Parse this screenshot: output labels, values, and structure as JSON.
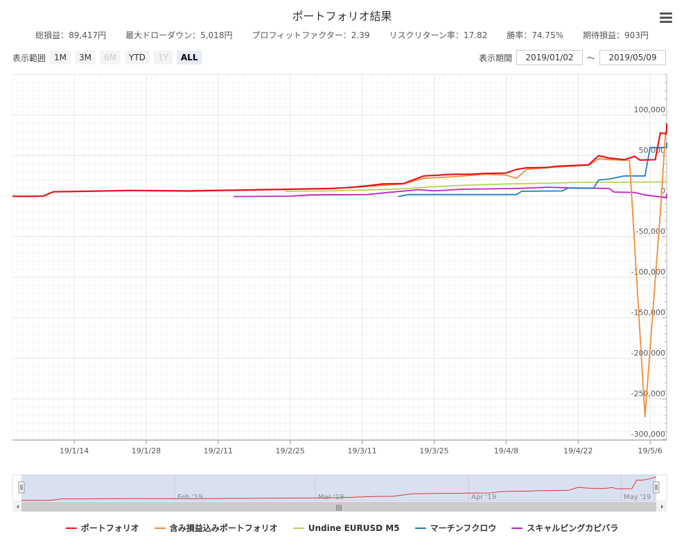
{
  "title": "ポートフォリオ結果",
  "stats": [
    "総損益：89,417円",
    "最大ドローダウン：5,018円",
    "プロフィットファクター：2.39",
    "リスクリターン率：17.82",
    "勝率：74.75%",
    "期待損益：903円"
  ],
  "range_selector": {
    "label": "表示範囲",
    "buttons": [
      {
        "label": "1M",
        "state": "normal"
      },
      {
        "label": "3M",
        "state": "normal"
      },
      {
        "label": "6M",
        "state": "disabled"
      },
      {
        "label": "YTD",
        "state": "normal"
      },
      {
        "label": "1Y",
        "state": "disabled"
      },
      {
        "label": "ALL",
        "state": "selected"
      }
    ]
  },
  "period": {
    "label": "表示期間",
    "from": "2019/01/02",
    "sep": "～",
    "to": "2019/05/09"
  },
  "navigator_labels": [
    "Feb '19",
    "Mar '19",
    "Apr '19",
    "May '19"
  ],
  "navigator_scroll_glyph": "|||",
  "chart_data": {
    "type": "line",
    "title": "ポートフォリオ結果",
    "xlabel": "",
    "ylabel": "",
    "x_ticks": [
      "19/1/14",
      "19/1/28",
      "19/2/11",
      "19/2/25",
      "19/3/11",
      "19/3/25",
      "19/4/8",
      "19/4/22",
      "19/5/6"
    ],
    "y_ticks": [
      "100,000",
      "50,000",
      "0",
      "-50,000",
      "-100,000",
      "-150,000",
      "-200,000",
      "-250,000",
      "-300,000"
    ],
    "xlim": [
      "2019/01/02",
      "2019/05/09"
    ],
    "ylim": [
      -300000,
      150000
    ],
    "grid": true,
    "legend_position": "bottom",
    "series": [
      {
        "name": "ポートフォリオ",
        "color": "#e8141e",
        "points": [
          [
            "2019/01/02",
            -200
          ],
          [
            "2019/01/06",
            -200
          ],
          [
            "2019/01/08",
            200
          ],
          [
            "2019/01/10",
            5500
          ],
          [
            "2019/01/16",
            6000
          ],
          [
            "2019/01/25",
            7000
          ],
          [
            "2019/02/05",
            6500
          ],
          [
            "2019/02/18",
            7800
          ],
          [
            "2019/02/24",
            8500
          ],
          [
            "2019/03/05",
            9500
          ],
          [
            "2019/03/08",
            10500
          ],
          [
            "2019/03/11",
            12000
          ],
          [
            "2019/03/15",
            15000
          ],
          [
            "2019/03/19",
            15500
          ],
          [
            "2019/03/23",
            25000
          ],
          [
            "2019/03/29",
            27000
          ],
          [
            "2019/04/01",
            27000
          ],
          [
            "2019/04/04",
            28000
          ],
          [
            "2019/04/08",
            28500
          ],
          [
            "2019/04/10",
            33000
          ],
          [
            "2019/04/12",
            35000
          ],
          [
            "2019/04/16",
            35500
          ],
          [
            "2019/04/18",
            37000
          ],
          [
            "2019/04/22",
            38000
          ],
          [
            "2019/04/24",
            38500
          ],
          [
            "2019/04/26",
            50000
          ],
          [
            "2019/04/28",
            47000
          ],
          [
            "2019/05/01",
            45000
          ],
          [
            "2019/05/03",
            49000
          ],
          [
            "2019/05/04",
            44500
          ],
          [
            "2019/05/07",
            45000
          ],
          [
            "2019/05/08",
            78000
          ],
          [
            "2019/05/09",
            77000
          ],
          [
            "2019/05/10",
            80000
          ],
          [
            "2019/05/12",
            89400
          ]
        ]
      },
      {
        "name": "含み損益込みポートフォリオ",
        "color": "#f28c35",
        "points": [
          [
            "2019/01/02",
            -200
          ],
          [
            "2019/01/06",
            -200
          ],
          [
            "2019/01/08",
            200
          ],
          [
            "2019/01/10",
            5500
          ],
          [
            "2019/01/16",
            6000
          ],
          [
            "2019/01/25",
            7000
          ],
          [
            "2019/02/05",
            6000
          ],
          [
            "2019/02/18",
            7500
          ],
          [
            "2019/02/24",
            8200
          ],
          [
            "2019/03/05",
            9200
          ],
          [
            "2019/03/11",
            11500
          ],
          [
            "2019/03/19",
            15000
          ],
          [
            "2019/03/23",
            22000
          ],
          [
            "2019/03/29",
            24000
          ],
          [
            "2019/04/04",
            27000
          ],
          [
            "2019/04/08",
            26000
          ],
          [
            "2019/04/10",
            22000
          ],
          [
            "2019/04/12",
            33000
          ],
          [
            "2019/04/18",
            36000
          ],
          [
            "2019/04/22",
            37500
          ],
          [
            "2019/04/24",
            38000
          ],
          [
            "2019/04/26",
            46000
          ],
          [
            "2019/04/28",
            45000
          ],
          [
            "2019/05/02",
            44000
          ],
          [
            "2019/05/05",
            -272000
          ],
          [
            "2019/05/08",
            -20000
          ],
          [
            "2019/05/09",
            78000
          ],
          [
            "2019/05/10",
            75000
          ],
          [
            "2019/05/12",
            87000
          ]
        ]
      },
      {
        "name": "Undine EURUSD M5",
        "color": "#b5d353",
        "points": [
          [
            "2019/02/24",
            6000
          ],
          [
            "2019/03/05",
            6500
          ],
          [
            "2019/03/19",
            9000
          ],
          [
            "2019/03/23",
            11000
          ],
          [
            "2019/03/29",
            13000
          ],
          [
            "2019/04/08",
            15000
          ],
          [
            "2019/04/16",
            16000
          ],
          [
            "2019/04/22",
            17000
          ],
          [
            "2019/05/12",
            17500
          ]
        ]
      },
      {
        "name": "マーチンフクロウ",
        "color": "#1f7dc6",
        "points": [
          [
            "2019/03/18",
            -500
          ],
          [
            "2019/03/20",
            2000
          ],
          [
            "2019/03/30",
            2000
          ],
          [
            "2019/04/10",
            2000
          ],
          [
            "2019/04/11",
            6000
          ],
          [
            "2019/04/19",
            6500
          ],
          [
            "2019/04/20",
            10000
          ],
          [
            "2019/04/25",
            10000
          ],
          [
            "2019/04/26",
            20000
          ],
          [
            "2019/04/28",
            21000
          ],
          [
            "2019/05/01",
            25000
          ],
          [
            "2019/05/05",
            25000
          ],
          [
            "2019/05/06",
            60000
          ],
          [
            "2019/05/10",
            60000
          ],
          [
            "2019/05/12",
            66000
          ]
        ]
      },
      {
        "name": "スキャルピングカピバラ",
        "color": "#c222c2",
        "points": [
          [
            "2019/02/14",
            -500
          ],
          [
            "2019/02/25",
            0
          ],
          [
            "2019/03/01",
            1500
          ],
          [
            "2019/03/12",
            2000
          ],
          [
            "2019/03/16",
            4500
          ],
          [
            "2019/03/22",
            8000
          ],
          [
            "2019/03/25",
            6500
          ],
          [
            "2019/03/30",
            8500
          ],
          [
            "2019/04/10",
            9500
          ],
          [
            "2019/04/16",
            11000
          ],
          [
            "2019/04/22",
            10000
          ],
          [
            "2019/04/28",
            9500
          ],
          [
            "2019/04/29",
            5000
          ],
          [
            "2019/05/03",
            4500
          ],
          [
            "2019/05/05",
            1500
          ],
          [
            "2019/05/10",
            -2000
          ],
          [
            "2019/05/12",
            3000
          ]
        ]
      }
    ]
  }
}
